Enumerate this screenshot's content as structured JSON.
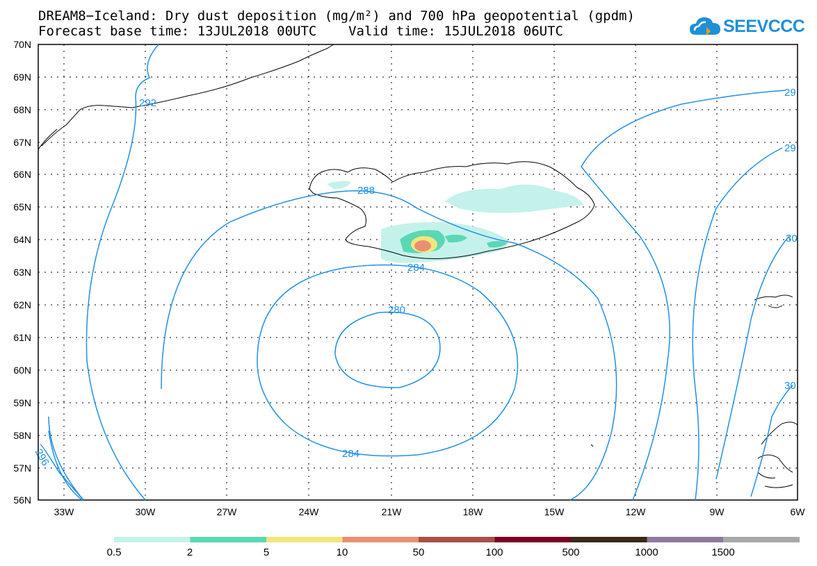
{
  "title": {
    "line1": "DREAM8−Iceland: Dry dust deposition (mg/m²) and 700 hPa geopotential (gpdm)",
    "line2": "Forecast base time: 13JUL2018 00UTC    Valid time: 15JUL2018 06UTC"
  },
  "logo": {
    "text": "SEEVCCC",
    "icon": "cloud-icon",
    "color": "#1e90d8"
  },
  "map": {
    "lat_labels": [
      "70N",
      "69N",
      "68N",
      "67N",
      "66N",
      "65N",
      "64N",
      "63N",
      "62N",
      "61N",
      "60N",
      "59N",
      "58N",
      "57N",
      "56N"
    ],
    "lon_labels": [
      "33W",
      "30W",
      "27W",
      "24W",
      "21W",
      "18W",
      "15W",
      "12W",
      "9W",
      "6W"
    ],
    "contour_labels": [
      "292",
      "288",
      "284",
      "280",
      "284",
      "296",
      "29",
      "29",
      "30",
      "30"
    ],
    "contour_color": "#1e90e6"
  },
  "legend": {
    "labels": [
      "0.5",
      "2",
      "5",
      "10",
      "50",
      "100",
      "500",
      "1000",
      "1500"
    ],
    "colors": [
      "#c4f2ea",
      "#5ad8b4",
      "#f2e67a",
      "#ea9070",
      "#a85048",
      "#7a0024",
      "#3a2818",
      "#9078a0",
      "#a8a8a8"
    ]
  }
}
